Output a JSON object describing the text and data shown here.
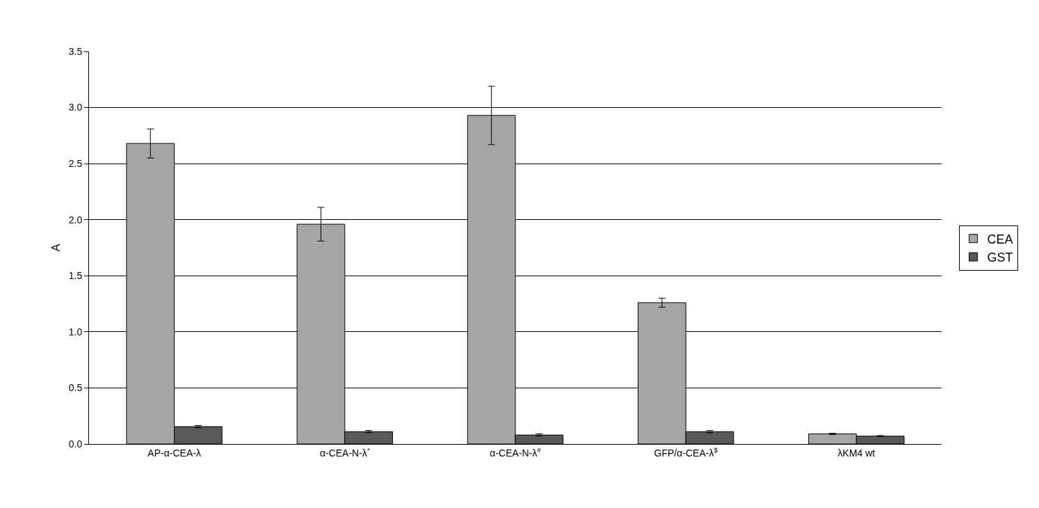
{
  "chart_data": {
    "type": "bar",
    "ylabel": "A",
    "categories": [
      "AP-α-CEA-λ",
      "α-CEA-N-λ$^{*}$",
      "α-CEA-N-λ$^{#}$",
      "GFP/α-CEA-λ$^{$}$",
      "λKM4 wt"
    ],
    "series": [
      {
        "name": "CEA",
        "color": "#a6a6a6",
        "values": [
          2.68,
          1.96,
          2.93,
          1.26,
          0.09
        ],
        "errors": [
          0.13,
          0.15,
          0.26,
          0.04,
          0.005
        ]
      },
      {
        "name": "GST",
        "color": "#595959",
        "values": [
          0.155,
          0.11,
          0.08,
          0.11,
          0.07
        ],
        "errors": [
          0.01,
          0.01,
          0.01,
          0.01,
          0.005
        ]
      }
    ],
    "ylim": [
      0,
      3.5
    ],
    "yticks": [
      {
        "value": 0,
        "label": "0.0"
      },
      {
        "value": 0.5,
        "label": "0.5"
      },
      {
        "value": 1,
        "label": "1.0"
      },
      {
        "value": 1.5,
        "label": "1.5"
      },
      {
        "value": 2,
        "label": "2.0"
      },
      {
        "value": 2.5,
        "label": "2.5"
      },
      {
        "value": 3,
        "label": "3.0"
      },
      {
        "value": 3.5,
        "label": "3.5"
      }
    ],
    "grid": "y",
    "legend": "right"
  }
}
